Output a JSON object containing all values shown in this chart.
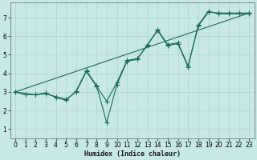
{
  "bg_color": "#c8e8e8",
  "line_color": "#1a6b5a",
  "grid_color": "#b8d8d8",
  "xlabel": "Humidex (Indice chaleur)",
  "xlim": [
    -0.5,
    23.5
  ],
  "ylim": [
    0.5,
    7.8
  ],
  "xticks": [
    0,
    1,
    2,
    3,
    4,
    5,
    6,
    7,
    8,
    9,
    10,
    11,
    12,
    13,
    14,
    15,
    16,
    17,
    18,
    19,
    20,
    21,
    22,
    23
  ],
  "yticks": [
    1,
    2,
    3,
    4,
    5,
    6,
    7
  ],
  "series1_x": [
    0,
    1,
    2,
    3,
    4,
    5,
    6,
    7,
    8,
    9,
    10,
    11,
    12,
    13,
    14,
    15,
    16,
    17,
    18,
    19,
    20,
    21,
    22,
    23
  ],
  "series1_y": [
    3.0,
    2.85,
    2.85,
    2.95,
    2.7,
    2.55,
    3.05,
    4.15,
    3.35,
    1.35,
    3.4,
    4.65,
    4.75,
    5.55,
    6.3,
    5.5,
    5.6,
    4.35,
    6.6,
    7.35,
    7.2,
    7.2,
    7.2,
    7.2
  ],
  "series2_x": [
    0,
    2,
    3,
    4,
    5,
    6,
    7,
    8,
    9,
    10,
    11,
    12,
    13,
    14,
    15,
    16,
    17,
    18,
    19,
    20,
    21,
    22,
    23
  ],
  "series2_y": [
    3.0,
    2.85,
    2.9,
    2.75,
    2.6,
    3.0,
    4.1,
    3.3,
    2.5,
    3.5,
    4.7,
    4.8,
    5.5,
    6.35,
    5.55,
    5.65,
    4.4,
    6.55,
    7.3,
    7.25,
    7.25,
    7.25,
    7.25
  ],
  "series3_x": [
    0,
    23
  ],
  "series3_y": [
    3.0,
    7.25
  ],
  "axis_fontsize": 6,
  "tick_fontsize": 5.5
}
